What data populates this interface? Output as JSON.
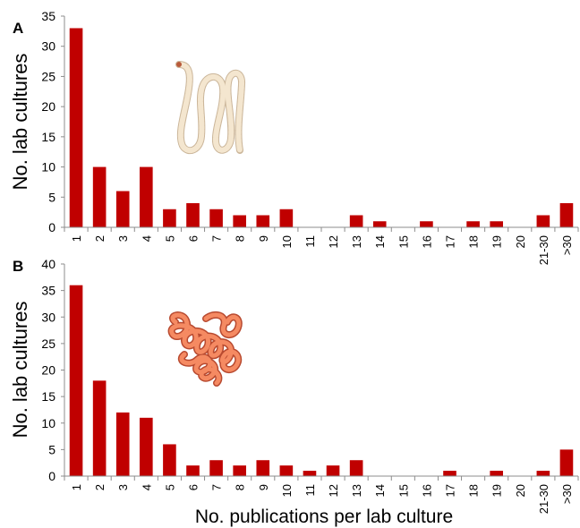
{
  "figure": {
    "xlabel": "No. publications per lab culture"
  },
  "chart_data": [
    {
      "type": "bar",
      "panel_label": "A",
      "ylabel": "No. lab cultures",
      "xlabel": "",
      "ylim": [
        0,
        35
      ],
      "yticks": [
        0,
        5,
        10,
        15,
        20,
        25,
        30,
        35
      ],
      "categories": [
        "1",
        "2",
        "3",
        "4",
        "5",
        "6",
        "7",
        "8",
        "9",
        "10",
        "11",
        "12",
        "13",
        "14",
        "15",
        "16",
        "17",
        "18",
        "19",
        "20",
        "21-30",
        ">30"
      ],
      "values": [
        33,
        10,
        6,
        10,
        3,
        4,
        3,
        2,
        2,
        3,
        0,
        0,
        2,
        1,
        0,
        1,
        0,
        1,
        1,
        0,
        2,
        4
      ],
      "bar_color": "#c00000",
      "illustration": "pale-worm-icon",
      "illustration_color": "#f0dcc0"
    },
    {
      "type": "bar",
      "panel_label": "B",
      "ylabel": "No. lab cultures",
      "xlabel": "No. publications per lab culture",
      "ylim": [
        0,
        40
      ],
      "yticks": [
        0,
        5,
        10,
        15,
        20,
        25,
        30,
        35,
        40
      ],
      "categories": [
        "1",
        "2",
        "3",
        "4",
        "5",
        "6",
        "7",
        "8",
        "9",
        "10",
        "11",
        "12",
        "13",
        "14",
        "15",
        "16",
        "17",
        "18",
        "19",
        "20",
        "21-30",
        ">30"
      ],
      "values": [
        36,
        18,
        12,
        11,
        6,
        2,
        3,
        2,
        3,
        2,
        1,
        2,
        3,
        0,
        0,
        0,
        1,
        0,
        1,
        0,
        1,
        5
      ],
      "bar_color": "#c00000",
      "illustration": "coiled-worm-icon",
      "illustration_color": "#f07850"
    }
  ]
}
